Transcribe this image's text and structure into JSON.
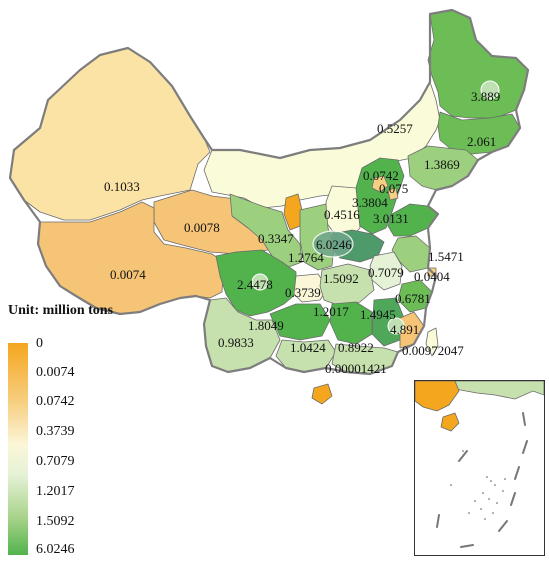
{
  "unit_title": "Unit: million tons",
  "legend": {
    "labels": [
      "0",
      "0.0074",
      "0.0742",
      "0.3739",
      "0.7079",
      "1.2017",
      "1.5092",
      "6.0246"
    ],
    "colors": [
      "#f4a61e",
      "#52b34d"
    ]
  },
  "regions": [
    {
      "id": "xinjiang",
      "value": "0.1033"
    },
    {
      "id": "qinghai",
      "value": "0.0078"
    },
    {
      "id": "tibet",
      "value": "0.0074"
    },
    {
      "id": "heilongjiang",
      "value": "3.889"
    },
    {
      "id": "jilin",
      "value": "2.061"
    },
    {
      "id": "liaoning",
      "value": "1.3869"
    },
    {
      "id": "inner-mongolia",
      "value": "0.5257"
    },
    {
      "id": "beijing",
      "value": "0.0742"
    },
    {
      "id": "tianjin",
      "value": "0.075"
    },
    {
      "id": "hebei",
      "value": "3.3804"
    },
    {
      "id": "shandong",
      "value": "3.0131"
    },
    {
      "id": "shanxi",
      "value": "0.4516"
    },
    {
      "id": "ningxia",
      "value": "0.3347"
    },
    {
      "id": "gansu",
      "value": "1.2764"
    },
    {
      "id": "henan",
      "value": "6.0246"
    },
    {
      "id": "jiangsu",
      "value": "1.5471"
    },
    {
      "id": "shaanxi",
      "value": "1.5092"
    },
    {
      "id": "anhui",
      "value": "0.7079"
    },
    {
      "id": "shanghai",
      "value": "0.0404"
    },
    {
      "id": "sichuan",
      "value": "2.4478"
    },
    {
      "id": "chongqing",
      "value": "0.3739"
    },
    {
      "id": "zhejiang",
      "value": "0.6781"
    },
    {
      "id": "hubei",
      "value": "1.2017"
    },
    {
      "id": "hunan",
      "value": "1.4945"
    },
    {
      "id": "guizhou",
      "value": "1.8049"
    },
    {
      "id": "jiangxi",
      "value": "4.891"
    },
    {
      "id": "yunnan",
      "value": "0.9833"
    },
    {
      "id": "guangxi",
      "value": "1.0424"
    },
    {
      "id": "guangdong",
      "value": "0.8922"
    },
    {
      "id": "fujian",
      "value": "0.00972047"
    },
    {
      "id": "hainan",
      "value": "0.00001421"
    }
  ]
}
